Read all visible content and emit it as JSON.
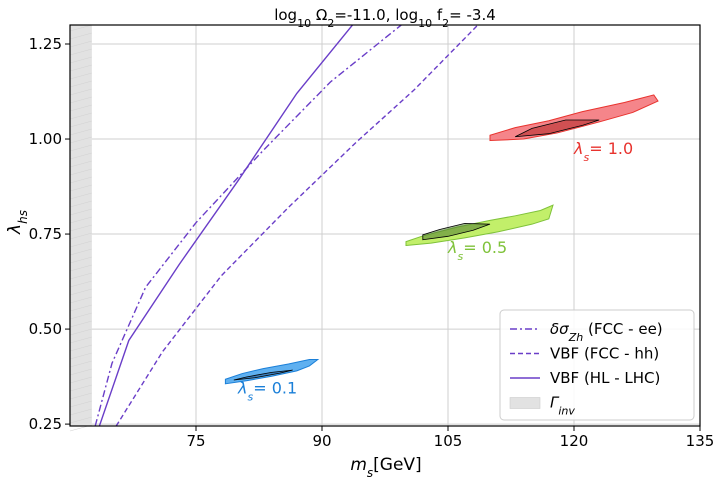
{
  "chart_data": {
    "type": "line",
    "title": "log₁₀ Ω₂=-11.0,  log₁₀ f₂= -3.4",
    "xlabel": "m_s[GeV]",
    "ylabel": "λ_hs",
    "xlim": [
      60,
      135
    ],
    "ylim": [
      0.245,
      1.3
    ],
    "xticks": [
      {
        "value": 75,
        "label": "75"
      },
      {
        "value": 90,
        "label": "90"
      },
      {
        "value": 105,
        "label": "105"
      },
      {
        "value": 120,
        "label": "120"
      },
      {
        "value": 135,
        "label": "135"
      }
    ],
    "yticks": [
      {
        "value": 0.25,
        "label": "0.25"
      },
      {
        "value": 0.5,
        "label": "0.50"
      },
      {
        "value": 0.75,
        "label": "0.75"
      },
      {
        "value": 1.0,
        "label": "1.00"
      },
      {
        "value": 1.25,
        "label": "1.25"
      }
    ],
    "grid": true,
    "series": [
      {
        "name": "δσ_Zh (FCC - ee)",
        "style": "dashdot",
        "color": "#6a3ec8",
        "x": [
          63.0,
          65.0,
          69.0,
          75.0,
          83.0,
          91.0,
          100.0
        ],
        "y": [
          0.245,
          0.41,
          0.61,
          0.78,
          0.97,
          1.15,
          1.31
        ]
      },
      {
        "name": "VBF (FCC - hh)",
        "style": "dashed",
        "color": "#6a3ec8",
        "x": [
          65.5,
          71.0,
          78.0,
          86.0,
          94.0,
          101.0,
          109.0
        ],
        "y": [
          0.245,
          0.44,
          0.64,
          0.82,
          0.99,
          1.13,
          1.31
        ]
      },
      {
        "name": "VBF (HL - LHC)",
        "style": "solid",
        "color": "#6a3ec8",
        "x": [
          63.5,
          67.0,
          73.0,
          80.0,
          87.0,
          94.0
        ],
        "y": [
          0.245,
          0.47,
          0.67,
          0.89,
          1.12,
          1.31
        ]
      }
    ],
    "band": {
      "name": "Γ_inv",
      "xrange": [
        60,
        62.6
      ],
      "color": "#e2e2e2"
    },
    "regions": [
      {
        "label": "λ_s= 0.1",
        "color": "#1a7fd8",
        "fill": "#5fb0f0",
        "dark": "#1f5a96",
        "outer": [
          [
            78.5,
            0.356
          ],
          [
            81,
            0.364
          ],
          [
            84,
            0.376
          ],
          [
            87,
            0.39
          ],
          [
            88.5,
            0.403
          ],
          [
            89.5,
            0.42
          ],
          [
            88.5,
            0.42
          ],
          [
            86,
            0.408
          ],
          [
            83,
            0.396
          ],
          [
            80.5,
            0.383
          ],
          [
            78.5,
            0.368
          ]
        ],
        "inner": [
          [
            79.5,
            0.366
          ],
          [
            82,
            0.372
          ],
          [
            85,
            0.384
          ],
          [
            86.5,
            0.392
          ],
          [
            84,
            0.386
          ],
          [
            81,
            0.374
          ]
        ],
        "label_pos": [
          80,
          0.33
        ]
      },
      {
        "label": "λ_s= 0.5",
        "color": "#7fc23a",
        "fill": "#c2ef6a",
        "dark": "#4f7a30",
        "outer": [
          [
            100,
            0.72
          ],
          [
            103,
            0.726
          ],
          [
            107,
            0.74
          ],
          [
            111,
            0.756
          ],
          [
            115,
            0.776
          ],
          [
            117,
            0.79
          ],
          [
            117.5,
            0.826
          ],
          [
            116,
            0.812
          ],
          [
            113,
            0.798
          ],
          [
            110,
            0.786
          ],
          [
            106,
            0.768
          ],
          [
            102,
            0.745
          ],
          [
            100,
            0.73
          ]
        ],
        "inner": [
          [
            102,
            0.735
          ],
          [
            105,
            0.744
          ],
          [
            108,
            0.76
          ],
          [
            110,
            0.776
          ],
          [
            107,
            0.778
          ],
          [
            104,
            0.762
          ],
          [
            102,
            0.748
          ]
        ],
        "label_pos": [
          105,
          0.7
        ]
      },
      {
        "label": "λ_s= 1.0",
        "color": "#e8332e",
        "fill": "#f5858a",
        "dark": "#b02424",
        "outer": [
          [
            110,
            0.996
          ],
          [
            114,
            1.0
          ],
          [
            118,
            1.016
          ],
          [
            123,
            1.045
          ],
          [
            127,
            1.07
          ],
          [
            130,
            1.1
          ],
          [
            129.5,
            1.116
          ],
          [
            126,
            1.096
          ],
          [
            121,
            1.072
          ],
          [
            117,
            1.048
          ],
          [
            113,
            1.03
          ],
          [
            110,
            1.01
          ]
        ],
        "inner": [
          [
            113,
            1.006
          ],
          [
            117,
            1.014
          ],
          [
            121,
            1.036
          ],
          [
            123,
            1.05
          ],
          [
            119,
            1.05
          ],
          [
            115,
            1.028
          ]
        ],
        "label_pos": [
          120,
          0.96
        ]
      }
    ],
    "legend": {
      "placement": "bottom-right",
      "entries": [
        {
          "label": "δσ_Zh (FCC - ee)",
          "style": "dashdot"
        },
        {
          "label": "VBF (FCC - hh)",
          "style": "dashed"
        },
        {
          "label": "VBF (HL - LHC)",
          "style": "solid"
        },
        {
          "label": "Γ_inv",
          "style": "patch"
        }
      ]
    }
  }
}
